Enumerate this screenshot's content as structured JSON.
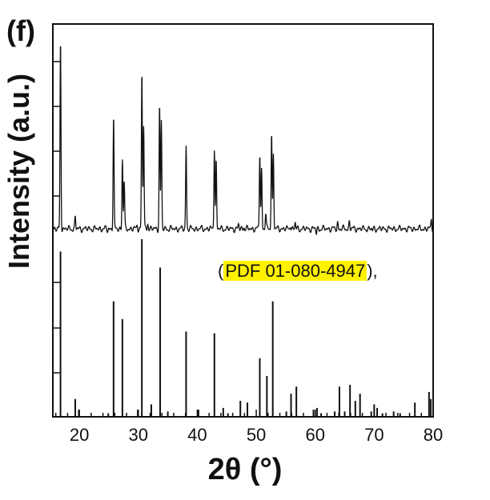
{
  "panel_label": "(f)",
  "annotation": {
    "open": "(",
    "highlight": "PDF 01-080-4947",
    "close": "),"
  },
  "colors": {
    "line": "#111111",
    "highlight": "#fff200",
    "background": "#ffffff"
  },
  "chart_data": {
    "type": "line",
    "xlabel": "2θ (°)",
    "ylabel": "Intensity (a.u.)",
    "xlim": [
      15.5,
      80
    ],
    "xticks": [
      20,
      30,
      40,
      50,
      60,
      70,
      80
    ],
    "grid": false,
    "legend": "none",
    "series": [
      {
        "role": "measured pattern",
        "baseline": 0.06,
        "ylim": [
          0,
          1
        ],
        "peaks": [
          [
            16.8,
            1.0
          ],
          [
            19.3,
            0.12
          ],
          [
            24.8,
            0.05
          ],
          [
            25.8,
            0.62
          ],
          [
            27.3,
            0.41
          ],
          [
            27.6,
            0.3
          ],
          [
            29.8,
            0.08
          ],
          [
            30.6,
            0.84
          ],
          [
            30.9,
            0.58
          ],
          [
            31.6,
            0.09
          ],
          [
            32.5,
            0.06
          ],
          [
            33.6,
            0.68
          ],
          [
            33.9,
            0.6
          ],
          [
            38.1,
            0.48
          ],
          [
            42.9,
            0.47
          ],
          [
            43.2,
            0.4
          ],
          [
            47.0,
            0.08
          ],
          [
            47.9,
            0.07
          ],
          [
            50.6,
            0.44
          ],
          [
            50.9,
            0.36
          ],
          [
            51.6,
            0.14
          ],
          [
            52.6,
            0.54
          ],
          [
            52.9,
            0.44
          ],
          [
            55.8,
            0.08
          ],
          [
            56.6,
            0.09
          ],
          [
            60.2,
            0.04
          ],
          [
            63.8,
            0.09
          ],
          [
            65.8,
            0.1
          ],
          [
            66.3,
            0.06
          ],
          [
            67.4,
            0.06
          ],
          [
            69.7,
            0.05
          ],
          [
            76.9,
            0.06
          ],
          [
            79.7,
            0.11
          ]
        ]
      },
      {
        "role": "reference pattern (PDF 01-080-4947)",
        "ylim": [
          0,
          1
        ],
        "sticks": [
          [
            16.8,
            0.93
          ],
          [
            19.3,
            0.1
          ],
          [
            19.9,
            0.04
          ],
          [
            24.9,
            0.02
          ],
          [
            25.8,
            0.65
          ],
          [
            27.3,
            0.55
          ],
          [
            29.9,
            0.04
          ],
          [
            30.6,
            1.0
          ],
          [
            32.2,
            0.07
          ],
          [
            33.7,
            0.84
          ],
          [
            35.0,
            0.03
          ],
          [
            38.1,
            0.48
          ],
          [
            40.2,
            0.04
          ],
          [
            42.9,
            0.47
          ],
          [
            44.4,
            0.05
          ],
          [
            45.2,
            0.02
          ],
          [
            47.3,
            0.09
          ],
          [
            48.5,
            0.08
          ],
          [
            50.6,
            0.33
          ],
          [
            51.8,
            0.23
          ],
          [
            52.8,
            0.65
          ],
          [
            55.1,
            0.03
          ],
          [
            55.9,
            0.13
          ],
          [
            56.8,
            0.17
          ],
          [
            59.7,
            0.04
          ],
          [
            60.3,
            0.05
          ],
          [
            61.0,
            0.02
          ],
          [
            63.3,
            0.03
          ],
          [
            64.1,
            0.17
          ],
          [
            65.0,
            0.03
          ],
          [
            65.9,
            0.18
          ],
          [
            66.8,
            0.09
          ],
          [
            67.6,
            0.13
          ],
          [
            69.5,
            0.03
          ],
          [
            70.0,
            0.07
          ],
          [
            70.5,
            0.05
          ],
          [
            71.4,
            0.02
          ],
          [
            73.3,
            0.03
          ],
          [
            74.4,
            0.02
          ],
          [
            76.9,
            0.08
          ],
          [
            79.3,
            0.14
          ],
          [
            79.6,
            0.1
          ]
        ]
      }
    ]
  }
}
